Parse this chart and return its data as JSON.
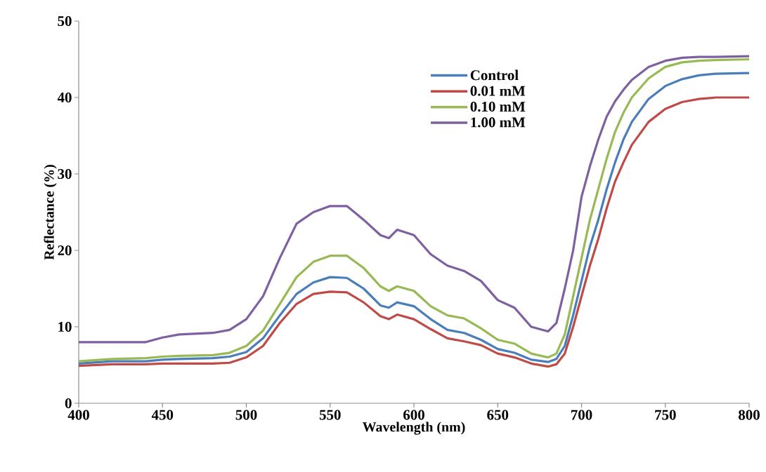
{
  "chart_data": {
    "type": "line",
    "xlabel": "Wavelength (nm)",
    "ylabel": "Reflectance (%)",
    "x": [
      400,
      420,
      440,
      450,
      460,
      480,
      490,
      500,
      510,
      520,
      530,
      540,
      550,
      560,
      570,
      580,
      585,
      590,
      600,
      610,
      620,
      630,
      640,
      650,
      660,
      670,
      680,
      685,
      690,
      695,
      700,
      705,
      710,
      715,
      720,
      725,
      730,
      740,
      750,
      760,
      770,
      780,
      800
    ],
    "series": [
      {
        "name": "Control",
        "color": "#4a7ebb",
        "values": [
          5.2,
          5.5,
          5.5,
          5.7,
          5.8,
          5.9,
          6.1,
          6.7,
          8.5,
          11.5,
          14.3,
          15.8,
          16.5,
          16.4,
          15.0,
          12.8,
          12.5,
          13.2,
          12.7,
          11.0,
          9.6,
          9.2,
          8.3,
          7.1,
          6.6,
          5.7,
          5.4,
          5.8,
          7.5,
          11.5,
          16.0,
          20.5,
          24.0,
          28.0,
          31.5,
          34.5,
          36.8,
          39.8,
          41.5,
          42.4,
          42.9,
          43.1,
          43.2
        ]
      },
      {
        "name": "0.01 mM",
        "color": "#be4b48",
        "values": [
          4.9,
          5.1,
          5.1,
          5.2,
          5.2,
          5.2,
          5.3,
          6.0,
          7.5,
          10.5,
          13.0,
          14.3,
          14.6,
          14.5,
          13.2,
          11.4,
          11.0,
          11.6,
          11.0,
          9.7,
          8.5,
          8.1,
          7.6,
          6.5,
          6.0,
          5.2,
          4.8,
          5.1,
          6.5,
          10.0,
          14.0,
          18.0,
          21.5,
          25.5,
          29.0,
          31.5,
          33.8,
          36.8,
          38.5,
          39.4,
          39.8,
          40.0,
          40.0
        ]
      },
      {
        "name": "0.10 mM",
        "color": "#98b954",
        "values": [
          5.5,
          5.8,
          5.9,
          6.1,
          6.2,
          6.3,
          6.6,
          7.5,
          9.5,
          13.0,
          16.5,
          18.5,
          19.3,
          19.3,
          17.7,
          15.3,
          14.7,
          15.3,
          14.7,
          12.7,
          11.5,
          11.1,
          9.8,
          8.3,
          7.8,
          6.5,
          6.0,
          6.5,
          9.0,
          14.0,
          19.0,
          24.0,
          28.0,
          32.0,
          35.5,
          38.0,
          40.0,
          42.5,
          44.0,
          44.6,
          44.8,
          44.9,
          45.0
        ]
      },
      {
        "name": "1.00 mM",
        "color": "#7d60a0",
        "values": [
          8.0,
          8.0,
          8.0,
          8.6,
          9.0,
          9.2,
          9.6,
          11.0,
          14.0,
          19.0,
          23.5,
          25.0,
          25.8,
          25.8,
          24.0,
          22.0,
          21.6,
          22.7,
          22.0,
          19.5,
          18.0,
          17.3,
          16.0,
          13.5,
          12.5,
          10.0,
          9.4,
          10.5,
          15.0,
          20.0,
          27.0,
          31.0,
          34.5,
          37.5,
          39.5,
          41.0,
          42.3,
          44.0,
          44.8,
          45.2,
          45.3,
          45.3,
          45.4
        ]
      }
    ],
    "xlim": [
      400,
      800
    ],
    "xticks": [
      400,
      450,
      500,
      550,
      600,
      650,
      700,
      750,
      800
    ],
    "ylim": [
      0,
      50
    ],
    "yticks": [
      0,
      10,
      20,
      30,
      40,
      50
    ],
    "grid": false,
    "legend": "top right",
    "marker": "none",
    "line_style": "solid"
  }
}
